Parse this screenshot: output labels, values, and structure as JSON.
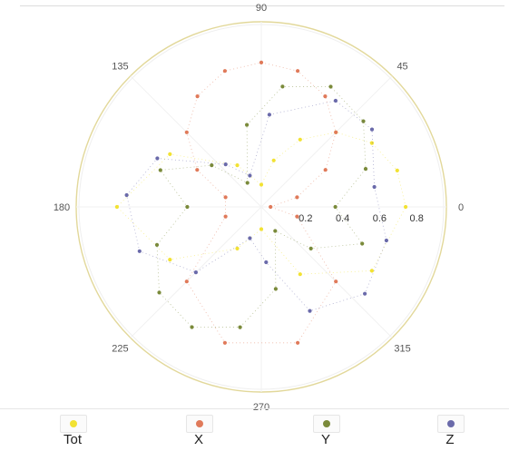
{
  "chart_data": {
    "type": "scatter",
    "projection": "polar",
    "title": "",
    "angle_labels": [
      "0",
      "45",
      "90",
      "135",
      "180",
      "225",
      "270",
      "315"
    ],
    "radial_ticks": [
      "0.2",
      "0.4",
      "0.6",
      "0.8"
    ],
    "radial_range": [
      0,
      1
    ],
    "grid": true,
    "legend_position": "bottom",
    "series": [
      {
        "name": "Tot",
        "color": "#f2e233",
        "points": [
          {
            "theta": 0,
            "r": 0.78
          },
          {
            "theta": 15,
            "r": 0.76
          },
          {
            "theta": 30,
            "r": 0.69
          },
          {
            "theta": 45,
            "r": 0.57
          },
          {
            "theta": 60,
            "r": 0.42
          },
          {
            "theta": 75,
            "r": 0.26
          },
          {
            "theta": 90,
            "r": 0.12
          },
          {
            "theta": 120,
            "r": 0.26
          },
          {
            "theta": 150,
            "r": 0.57
          },
          {
            "theta": 180,
            "r": 0.78
          },
          {
            "theta": 210,
            "r": 0.57
          },
          {
            "theta": 240,
            "r": 0.26
          },
          {
            "theta": 270,
            "r": 0.12
          },
          {
            "theta": 300,
            "r": 0.42
          },
          {
            "theta": 330,
            "r": 0.69
          }
        ]
      },
      {
        "name": "X",
        "color": "#e07a5a",
        "points": [
          {
            "theta": 0,
            "r": 0.05
          },
          {
            "theta": 15,
            "r": 0.2
          },
          {
            "theta": 30,
            "r": 0.4
          },
          {
            "theta": 45,
            "r": 0.57
          },
          {
            "theta": 60,
            "r": 0.69
          },
          {
            "theta": 75,
            "r": 0.76
          },
          {
            "theta": 90,
            "r": 0.78
          },
          {
            "theta": 105,
            "r": 0.76
          },
          {
            "theta": 120,
            "r": 0.69
          },
          {
            "theta": 135,
            "r": 0.57
          },
          {
            "theta": 150,
            "r": 0.4
          },
          {
            "theta": 165,
            "r": 0.2
          },
          {
            "theta": 195,
            "r": 0.2
          },
          {
            "theta": 225,
            "r": 0.57
          },
          {
            "theta": 255,
            "r": 0.76
          },
          {
            "theta": 285,
            "r": 0.76
          },
          {
            "theta": 315,
            "r": 0.57
          },
          {
            "theta": 345,
            "r": 0.2
          }
        ]
      },
      {
        "name": "Y",
        "color": "#7a8a3a",
        "points": [
          {
            "theta": 0,
            "r": 0.4
          },
          {
            "theta": 20,
            "r": 0.6
          },
          {
            "theta": 40,
            "r": 0.72
          },
          {
            "theta": 60,
            "r": 0.75
          },
          {
            "theta": 80,
            "r": 0.66
          },
          {
            "theta": 100,
            "r": 0.45
          },
          {
            "theta": 120,
            "r": 0.15
          },
          {
            "theta": 140,
            "r": 0.35
          },
          {
            "theta": 160,
            "r": 0.58
          },
          {
            "theta": 180,
            "r": 0.4
          },
          {
            "theta": 200,
            "r": 0.6
          },
          {
            "theta": 220,
            "r": 0.72
          },
          {
            "theta": 240,
            "r": 0.75
          },
          {
            "theta": 260,
            "r": 0.66
          },
          {
            "theta": 280,
            "r": 0.45
          },
          {
            "theta": 300,
            "r": 0.15
          },
          {
            "theta": 320,
            "r": 0.35
          },
          {
            "theta": 340,
            "r": 0.58
          }
        ]
      },
      {
        "name": "Z",
        "color": "#6a6aaa",
        "points": [
          {
            "theta": 10,
            "r": 0.62
          },
          {
            "theta": 35,
            "r": 0.73
          },
          {
            "theta": 55,
            "r": 0.7
          },
          {
            "theta": 85,
            "r": 0.5
          },
          {
            "theta": 110,
            "r": 0.18
          },
          {
            "theta": 130,
            "r": 0.3
          },
          {
            "theta": 155,
            "r": 0.62
          },
          {
            "theta": 175,
            "r": 0.73
          },
          {
            "theta": 200,
            "r": 0.7
          },
          {
            "theta": 225,
            "r": 0.5
          },
          {
            "theta": 250,
            "r": 0.18
          },
          {
            "theta": 275,
            "r": 0.3
          },
          {
            "theta": 295,
            "r": 0.62
          },
          {
            "theta": 320,
            "r": 0.73
          },
          {
            "theta": 345,
            "r": 0.7
          }
        ]
      }
    ]
  },
  "legend": {
    "items": [
      {
        "label": "Tot",
        "color": "#f2e233"
      },
      {
        "label": "X",
        "color": "#e07a5a"
      },
      {
        "label": "Y",
        "color": "#7a8a3a"
      },
      {
        "label": "Z",
        "color": "#6a6aaa"
      }
    ]
  }
}
